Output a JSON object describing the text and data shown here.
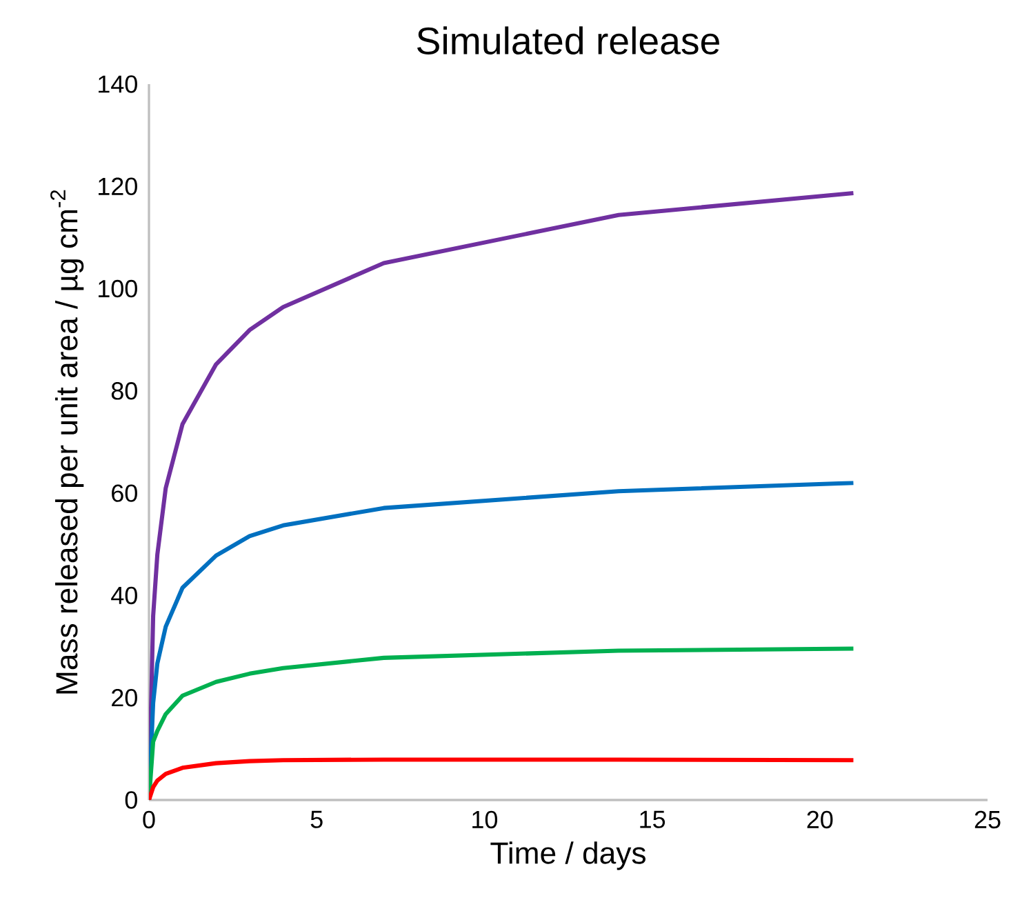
{
  "chart_data": {
    "type": "line",
    "title": "Simulated release",
    "xlabel": "Time / days",
    "ylabel": "Mass released per unit area / µg cm$^{-2}$",
    "x": [
      0,
      0.125,
      0.25,
      0.5,
      1,
      2,
      3,
      4,
      7,
      14,
      21
    ],
    "series": [
      {
        "color": "#7030a0",
        "values": [
          0,
          36,
          48,
          61,
          73.5,
          85.2,
          91.9,
          96.4,
          105,
          114.4,
          118.7
        ]
      },
      {
        "color": "#0070c0",
        "values": [
          0,
          19,
          26.7,
          33.9,
          41.5,
          47.8,
          51.6,
          53.7,
          57.1,
          60.4,
          62
        ]
      },
      {
        "color": "#00b050",
        "values": [
          0,
          11.4,
          13.5,
          16.8,
          20.4,
          23.1,
          24.7,
          25.8,
          27.8,
          29.2,
          29.6
        ]
      },
      {
        "color": "#ff0000",
        "values": [
          0,
          2.5,
          3.8,
          5.1,
          6.3,
          7.2,
          7.6,
          7.8,
          7.9,
          7.9,
          7.8
        ]
      }
    ],
    "xlim": [
      0,
      25
    ],
    "ylim": [
      0,
      140
    ],
    "xticks": [
      0,
      5,
      10,
      15,
      20,
      25
    ],
    "yticks": [
      0,
      20,
      40,
      60,
      80,
      100,
      120,
      140
    ],
    "grid": false,
    "marker": "none",
    "line_style": "solid"
  }
}
